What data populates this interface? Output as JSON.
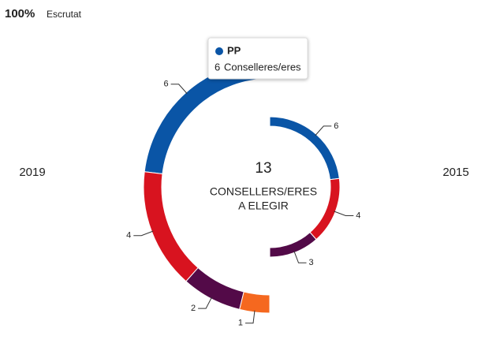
{
  "chart_data": {
    "type": "semi-donut",
    "counted_value": "100%",
    "counted_label": "Escrutat",
    "center_value": 13,
    "center_label": [
      "CONSELLERS/ERES",
      "A ELEGIR"
    ],
    "series": [
      {
        "name": "2019",
        "side": "left",
        "colors": [
          "#0a55a6",
          "#d8131f",
          "#530a48",
          "#f5681f"
        ],
        "values": [
          6,
          4,
          2,
          1
        ]
      },
      {
        "name": "2015",
        "side": "right",
        "colors": [
          "#0a55a6",
          "#d8131f",
          "#530a48"
        ],
        "values": [
          6,
          4,
          3
        ]
      }
    ],
    "tooltip": {
      "name": "PP",
      "color": "#0a55a6",
      "value": 6,
      "unit": "Conselleres/eres"
    }
  }
}
